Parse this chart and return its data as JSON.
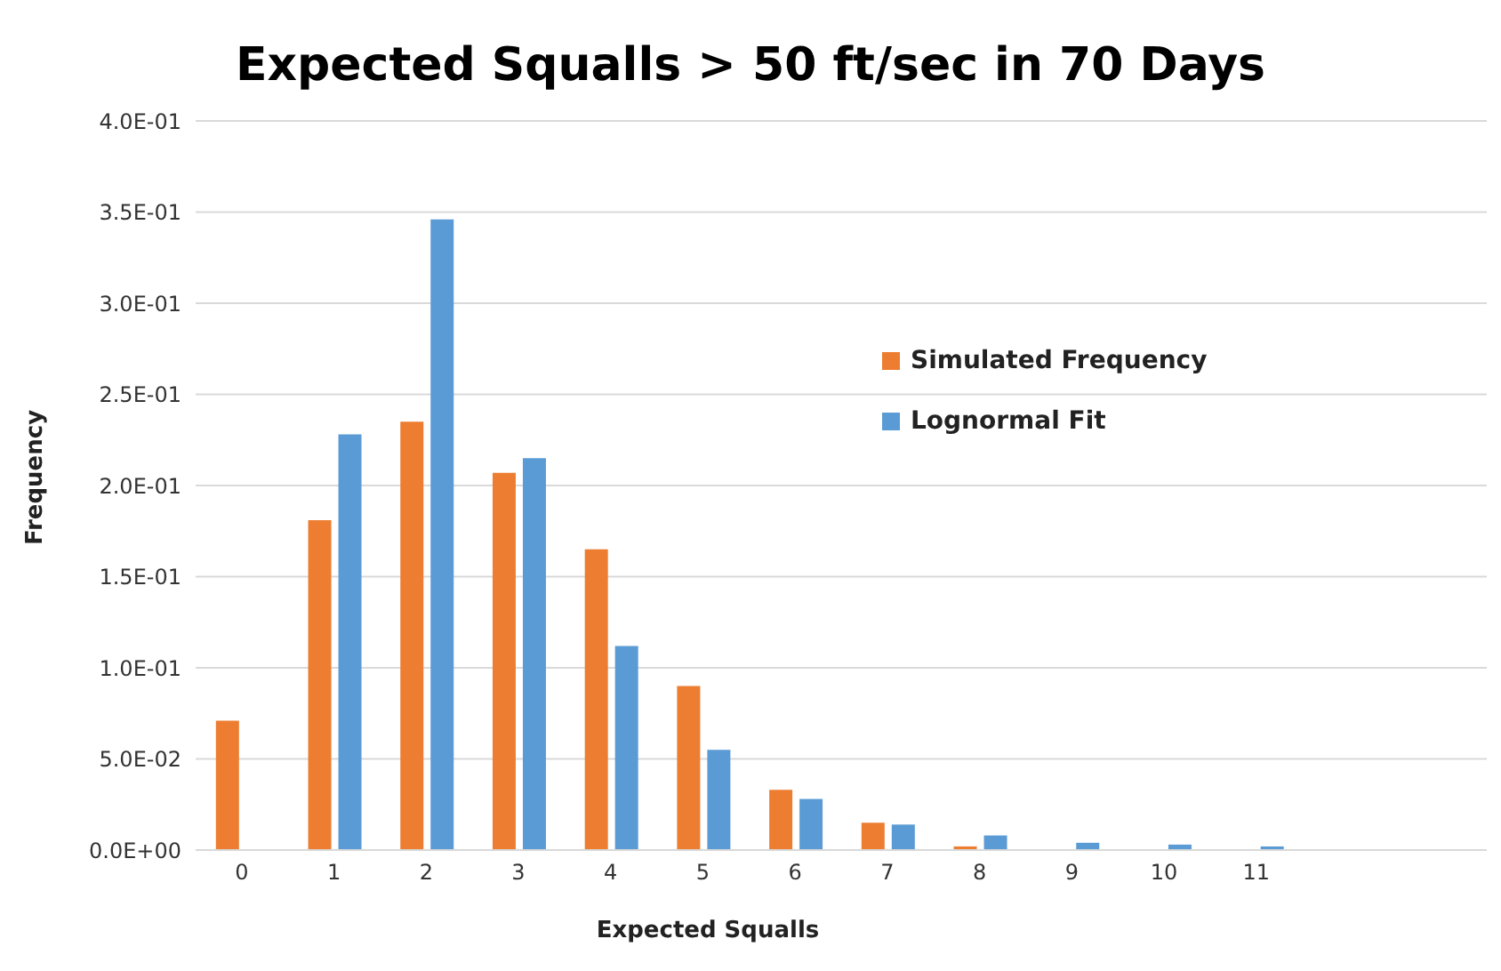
{
  "chart_data": {
    "type": "bar",
    "title": "Expected Squalls > 50 ft/sec in 70 Days",
    "xlabel": "Expected Squalls",
    "ylabel": "Frequency",
    "categories": [
      "0",
      "1",
      "2",
      "3",
      "4",
      "5",
      "6",
      "7",
      "8",
      "9",
      "10",
      "11",
      null,
      null
    ],
    "series": [
      {
        "name": "Simulated Frequency",
        "color": "#ed7d31",
        "values": [
          0.071,
          0.181,
          0.235,
          0.207,
          0.165,
          0.09,
          0.033,
          0.015,
          0.002,
          0,
          0,
          0,
          null,
          null
        ]
      },
      {
        "name": "Lognormal Fit",
        "color": "#5b9bd5",
        "values": [
          0,
          0.228,
          0.346,
          0.215,
          0.112,
          0.055,
          0.028,
          0.014,
          0.008,
          0.004,
          0.003,
          0.002,
          null,
          null
        ]
      }
    ],
    "ylim": [
      0,
      0.4
    ],
    "yticks": [
      {
        "value": 0,
        "label": "0.0E+00"
      },
      {
        "value": 0.05,
        "label": "5.0E-02"
      },
      {
        "value": 0.1,
        "label": "1.0E-01"
      },
      {
        "value": 0.15,
        "label": "1.5E-01"
      },
      {
        "value": 0.2,
        "label": "2.0E-01"
      },
      {
        "value": 0.25,
        "label": "2.5E-01"
      },
      {
        "value": 0.3,
        "label": "3.0E-01"
      },
      {
        "value": 0.35,
        "label": "3.5E-01"
      },
      {
        "value": 0.4,
        "label": "4.0E-01"
      }
    ],
    "grid": "y",
    "legend": "top right"
  }
}
